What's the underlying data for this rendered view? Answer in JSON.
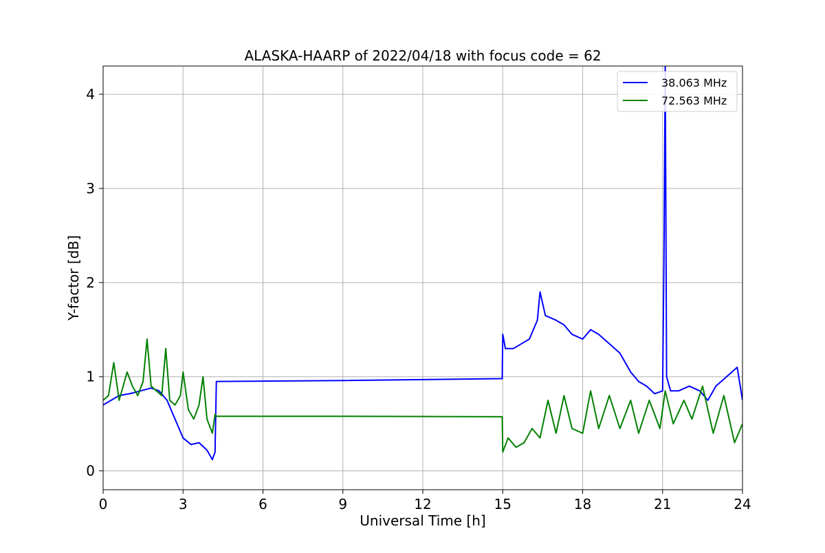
{
  "chart_data": {
    "type": "line",
    "title": "ALASKA-HAARP of 2022/04/18 with focus code = 62",
    "xlabel": "Universal Time [h]",
    "ylabel": "Y-factor [dB]",
    "xlim": [
      0,
      24
    ],
    "ylim": [
      -0.2,
      4.3
    ],
    "xticks": [
      0,
      3,
      6,
      9,
      12,
      15,
      18,
      21,
      24
    ],
    "yticks": [
      0,
      1,
      2,
      3,
      4
    ],
    "grid": true,
    "legend_position": "top-right",
    "series": [
      {
        "name": "38.063 MHz",
        "color": "#0000ff",
        "x": [
          0,
          0.3,
          0.6,
          1.0,
          1.4,
          1.8,
          2.1,
          2.4,
          2.7,
          3.0,
          3.3,
          3.6,
          3.9,
          4.1,
          4.2,
          4.25,
          9.0,
          14.98,
          15.0,
          15.1,
          15.4,
          15.7,
          16.0,
          16.3,
          16.4,
          16.6,
          17.0,
          17.3,
          17.6,
          18.0,
          18.3,
          18.6,
          19.0,
          19.4,
          19.8,
          20.1,
          20.4,
          20.7,
          21.0,
          21.05,
          21.1,
          21.15,
          21.3,
          21.6,
          22.0,
          22.4,
          22.7,
          23.0,
          23.4,
          23.8,
          24.0
        ],
        "y": [
          0.7,
          0.75,
          0.8,
          0.82,
          0.85,
          0.88,
          0.85,
          0.75,
          0.55,
          0.35,
          0.28,
          0.3,
          0.22,
          0.12,
          0.2,
          0.95,
          0.96,
          0.98,
          1.45,
          1.3,
          1.3,
          1.35,
          1.4,
          1.6,
          1.9,
          1.65,
          1.6,
          1.55,
          1.45,
          1.4,
          1.5,
          1.45,
          1.35,
          1.25,
          1.05,
          0.95,
          0.9,
          0.82,
          0.85,
          2.2,
          4.3,
          1.0,
          0.85,
          0.85,
          0.9,
          0.85,
          0.75,
          0.9,
          1.0,
          1.1,
          0.75
        ]
      },
      {
        "name": "72.563 MHz",
        "color": "#008000",
        "x": [
          0,
          0.2,
          0.4,
          0.6,
          0.9,
          1.1,
          1.3,
          1.5,
          1.65,
          1.8,
          2.0,
          2.2,
          2.35,
          2.5,
          2.7,
          2.9,
          3.0,
          3.2,
          3.4,
          3.6,
          3.75,
          3.9,
          4.1,
          4.2,
          4.25,
          9.0,
          14.98,
          15.0,
          15.2,
          15.5,
          15.8,
          16.1,
          16.4,
          16.7,
          17.0,
          17.3,
          17.6,
          18.0,
          18.3,
          18.6,
          19.0,
          19.4,
          19.8,
          20.1,
          20.5,
          20.9,
          21.1,
          21.4,
          21.8,
          22.1,
          22.5,
          22.9,
          23.3,
          23.7,
          24.0
        ],
        "y": [
          0.75,
          0.8,
          1.15,
          0.75,
          1.05,
          0.9,
          0.8,
          0.95,
          1.4,
          0.9,
          0.85,
          0.8,
          1.3,
          0.75,
          0.7,
          0.8,
          1.05,
          0.65,
          0.55,
          0.7,
          1.0,
          0.55,
          0.4,
          0.6,
          0.58,
          0.58,
          0.575,
          0.2,
          0.35,
          0.25,
          0.3,
          0.45,
          0.35,
          0.75,
          0.4,
          0.8,
          0.45,
          0.4,
          0.85,
          0.45,
          0.8,
          0.45,
          0.75,
          0.4,
          0.75,
          0.45,
          0.85,
          0.5,
          0.75,
          0.55,
          0.9,
          0.4,
          0.8,
          0.3,
          0.5
        ]
      }
    ]
  }
}
